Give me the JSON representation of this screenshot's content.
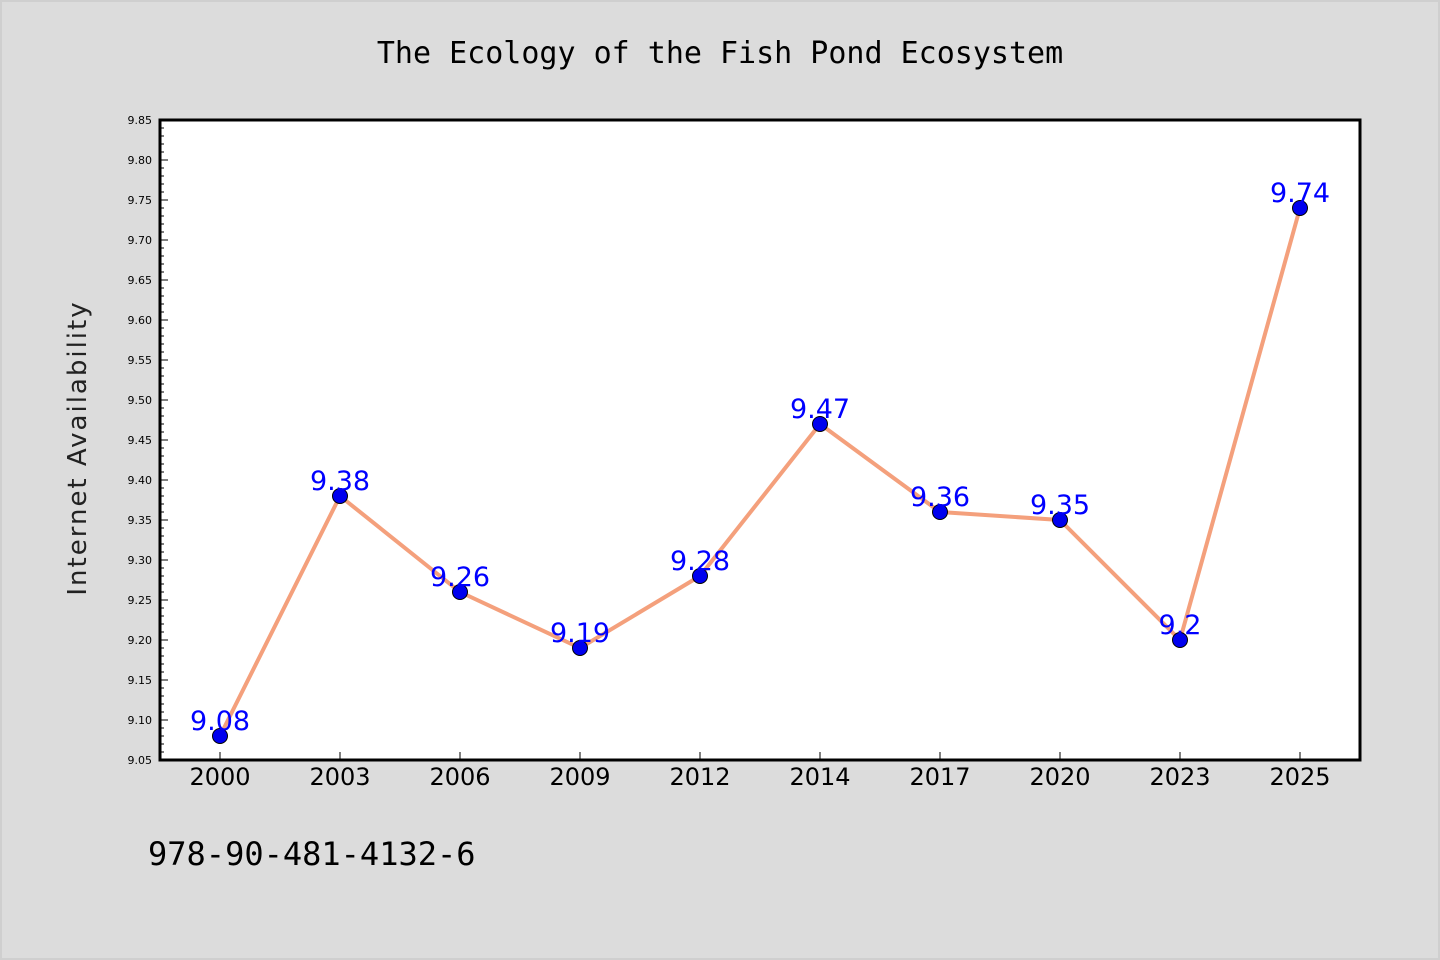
{
  "chart_data": {
    "type": "line",
    "title": "The Ecology of the Fish Pond Ecosystem",
    "xlabel": "",
    "ylabel": "Internet Availability",
    "categories": [
      "2000",
      "2003",
      "2006",
      "2009",
      "2012",
      "2014",
      "2017",
      "2020",
      "2023",
      "2025"
    ],
    "series": [
      {
        "values": [
          9.08,
          9.38,
          9.26,
          9.19,
          9.28,
          9.47,
          9.36,
          9.35,
          9.2,
          9.74
        ],
        "data_labels": [
          "9.08",
          "9.38",
          "9.26",
          "9.19",
          "9.28",
          "9.47",
          "9.36",
          "9.35",
          "9.2",
          "9.74"
        ]
      }
    ],
    "ylim": [
      9.05,
      9.85
    ],
    "yticks": [
      "9.05",
      "9.10",
      "9.15",
      "9.20",
      "9.25",
      "9.30",
      "9.35",
      "9.40",
      "9.45",
      "9.50",
      "9.55",
      "9.60",
      "9.65",
      "9.70",
      "9.75",
      "9.80",
      "9.85"
    ],
    "grid": false,
    "legend": "none",
    "colors": {
      "line": "#f4a07c",
      "marker": "#0000ee",
      "marker_edge": "#000000",
      "data_label": "#0000ff",
      "plot_background": "#ffffff",
      "figure_background": "#dcdcdc"
    }
  },
  "annotation": "978-90-481-4132-6"
}
